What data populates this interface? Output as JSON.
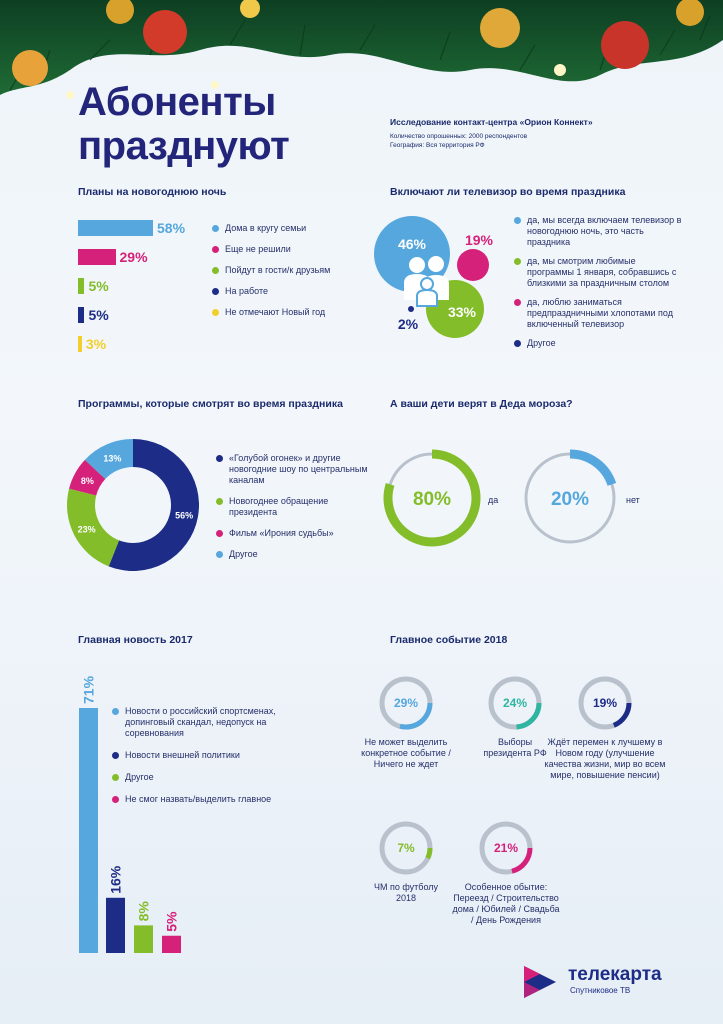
{
  "colors": {
    "blue": "#55a7dd",
    "navy": "#1d2c86",
    "pink": "#d5217a",
    "green": "#84bd2a",
    "yellow": "#f2cf2a",
    "gray": "#b9c2cc",
    "teal": "#2fb5a2"
  },
  "header": {
    "title_line1": "Абоненты",
    "title_line2": "празднуют",
    "study": "Исследование контакт-центра «Орион Коннект»",
    "respondents": "Количество опрошенных: 2000 респондентов",
    "geo": "География: Вся территория РФ"
  },
  "chart_data": [
    {
      "type": "bar",
      "title": "Планы на новогоднюю ночь",
      "categories": [
        "Дома в кругу семьи",
        "Еще не решили",
        "Пойдут в гости/к друзьям",
        "На работе",
        "Не отмечают Новый год"
      ],
      "values": [
        58,
        29,
        5,
        5,
        3
      ],
      "value_labels": [
        "58%",
        "29%",
        "5%",
        "5%",
        "3%"
      ],
      "colors": [
        "#55a7dd",
        "#d5217a",
        "#84bd2a",
        "#1d2c86",
        "#f2cf2a"
      ]
    },
    {
      "type": "scatter",
      "title": "Включают ли телевизор во время праздника",
      "categories": [
        "да, мы всегда включаем телевизор в новогоднюю ночь, это часть праздника",
        "да, мы смотрим любимые программы 1 января, собравшись с близкими за праздничным столом",
        "да, люблю заниматься предпраздничными хлопотами под включенный телевизор",
        "Другое"
      ],
      "values": [
        46,
        33,
        19,
        2
      ],
      "value_labels": [
        "46%",
        "33%",
        "19%",
        "2%"
      ],
      "colors": [
        "#55a7dd",
        "#84bd2a",
        "#d5217a",
        "#1d2c86"
      ]
    },
    {
      "type": "pie",
      "title": "Программы, которые смотрят во время праздника",
      "categories": [
        "«Голубой огонек» и другие новогодние шоу по центральным каналам",
        "Новогоднее обращение президента",
        "Фильм «Ирония судьбы»",
        "Другое"
      ],
      "values": [
        56,
        23,
        8,
        13
      ],
      "value_labels": [
        "56%",
        "23%",
        "8%",
        "13%"
      ],
      "colors": [
        "#1d2c86",
        "#84bd2a",
        "#d5217a",
        "#55a7dd"
      ]
    },
    {
      "type": "pie",
      "title": "А ваши дети верят в Деда мороза?",
      "categories": [
        "да",
        "нет"
      ],
      "values": [
        80,
        20
      ],
      "value_labels": [
        "80%",
        "20%"
      ],
      "colors": [
        "#84bd2a",
        "#55a7dd"
      ]
    },
    {
      "type": "bar",
      "title": "Главная новость 2017",
      "categories": [
        "Новости о российский спортсменах, допинговый скандал, недопуск на соревнования",
        "Новости внешней политики",
        "Другое",
        "Не смог назвать/выделить главное"
      ],
      "values": [
        71,
        16,
        8,
        5
      ],
      "value_labels": [
        "71%",
        "16%",
        "8%",
        "5%"
      ],
      "colors": [
        "#55a7dd",
        "#1d2c86",
        "#84bd2a",
        "#d5217a"
      ]
    },
    {
      "type": "pie",
      "title": "Главное событие 2018",
      "categories": [
        "Не может выделить конкретное событие / Ничего не ждет",
        "Выборы президента РФ",
        "Ждёт перемен к лучшему в Новом году (улучшение качества жизни, мир во всем мире, повышение пенсии)",
        "ЧМ по футболу 2018",
        "Особенное обытие: Переезд / Строительство дома / Юбилей / Свадьба / День Рождения"
      ],
      "values": [
        29,
        24,
        19,
        7,
        21
      ],
      "value_labels": [
        "29%",
        "24%",
        "19%",
        "7%",
        "21%"
      ],
      "colors": [
        "#55a7dd",
        "#2fb5a2",
        "#1d2c86",
        "#84bd2a",
        "#d5217a"
      ]
    }
  ],
  "logo": {
    "name": "телекарта",
    "tagline": "Спутниковое ТВ"
  }
}
